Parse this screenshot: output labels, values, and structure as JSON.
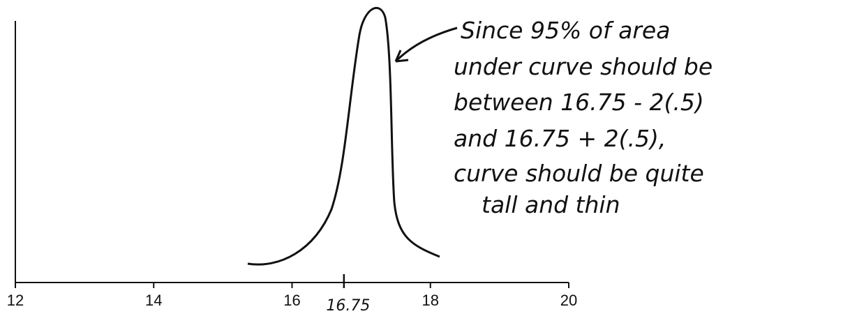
{
  "chart_data": {
    "type": "sketch",
    "xlim": [
      12,
      20
    ],
    "xticks": [
      12,
      14,
      16,
      18,
      20
    ],
    "marker_x": 16.75,
    "annotation": [
      "Since 95% of area",
      "under curve should be",
      "between 16.75 - 2(.5)",
      "and 16.75 + 2(.5),",
      "curve should be quite",
      "tall and thin"
    ]
  }
}
